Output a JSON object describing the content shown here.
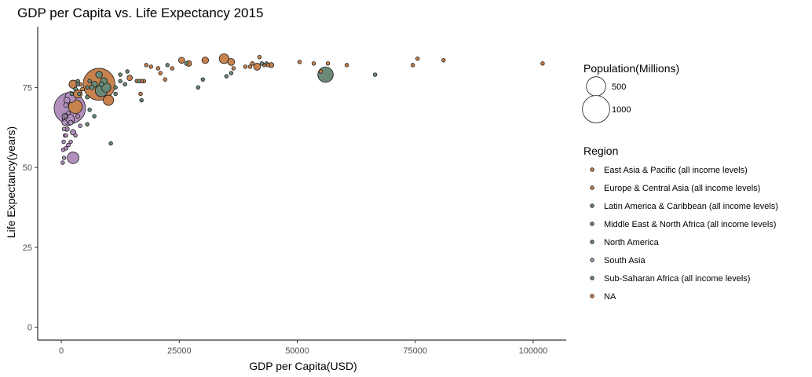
{
  "chart_data": {
    "type": "scatter",
    "title": "GDP per Capita vs. Life Expectancy 2015",
    "xlabel": "GDP per Capita(USD)",
    "ylabel": "Life Expectancy(years)",
    "xlim": [
      -5000,
      107000
    ],
    "ylim": [
      -4,
      94
    ],
    "x_ticks": [
      0,
      25000,
      50000,
      75000,
      100000
    ],
    "y_ticks": [
      0,
      25,
      50,
      75
    ],
    "grid": false,
    "legend_position": "right",
    "size_legend": {
      "title": "Population(Millions)",
      "entries": [
        {
          "label": "500",
          "value": 500
        },
        {
          "label": "1000",
          "value": 1000
        }
      ]
    },
    "color_legend": {
      "title": "Region",
      "entries": [
        {
          "label": "East Asia & Pacific (all income levels)",
          "color": "#c8824e"
        },
        {
          "label": "Europe & Central Asia (all income levels)",
          "color": "#c8824e"
        },
        {
          "label": "Latin America & Caribbean (all income levels)",
          "color": "#6a8a76"
        },
        {
          "label": "Middle East & North Africa (all income levels)",
          "color": "#6a8a76"
        },
        {
          "label": "North America",
          "color": "#6a8a76"
        },
        {
          "label": "South Asia",
          "color": "#b290bd"
        },
        {
          "label": "Sub-Saharan Africa (all income levels)",
          "color": "#6a8a76"
        },
        {
          "label": "NA",
          "color": "#c8824e"
        }
      ]
    },
    "points": [
      {
        "x": 102000,
        "y": 82.5,
        "pop": 1,
        "region": "Europe & Central Asia (all income levels)"
      },
      {
        "x": 81000,
        "y": 83.5,
        "pop": 8,
        "region": "Europe & Central Asia (all income levels)"
      },
      {
        "x": 75500,
        "y": 84,
        "pop": 1,
        "region": "Europe & Central Asia (all income levels)"
      },
      {
        "x": 74500,
        "y": 82,
        "pop": 5,
        "region": "Europe & Central Asia (all income levels)"
      },
      {
        "x": 66500,
        "y": 79,
        "pop": 5,
        "region": "Middle East & North Africa (all income levels)"
      },
      {
        "x": 60500,
        "y": 82,
        "pop": 5,
        "region": "Europe & Central Asia (all income levels)"
      },
      {
        "x": 56500,
        "y": 82.5,
        "pop": 10,
        "region": "East Asia & Pacific (all income levels)"
      },
      {
        "x": 56000,
        "y": 79,
        "pop": 320,
        "region": "North America"
      },
      {
        "x": 55000,
        "y": 80,
        "pop": 3,
        "region": "Europe & Central Asia (all income levels)"
      },
      {
        "x": 53500,
        "y": 82.5,
        "pop": 5,
        "region": "Europe & Central Asia (all income levels)"
      },
      {
        "x": 50500,
        "y": 83,
        "pop": 5,
        "region": "Europe & Central Asia (all income levels)"
      },
      {
        "x": 44500,
        "y": 82,
        "pop": 35,
        "region": "Europe & Central Asia (all income levels)"
      },
      {
        "x": 43800,
        "y": 82,
        "pop": 5,
        "region": "Europe & Central Asia (all income levels)"
      },
      {
        "x": 43500,
        "y": 82.5,
        "pop": 8,
        "region": "Middle East & North Africa (all income levels)"
      },
      {
        "x": 43000,
        "y": 82,
        "pop": 10,
        "region": "Europe & Central Asia (all income levels)"
      },
      {
        "x": 42500,
        "y": 82.5,
        "pop": 5,
        "region": "Middle East & North Africa (all income levels)"
      },
      {
        "x": 42000,
        "y": 84.5,
        "pop": 5,
        "region": "East Asia & Pacific (all income levels)"
      },
      {
        "x": 41500,
        "y": 81.5,
        "pop": 65,
        "region": "Europe & Central Asia (all income levels)"
      },
      {
        "x": 40500,
        "y": 82.5,
        "pop": 20,
        "region": "East Asia & Pacific (all income levels)"
      },
      {
        "x": 40000,
        "y": 81.5,
        "pop": 5,
        "region": "Europe & Central Asia (all income levels)"
      },
      {
        "x": 39000,
        "y": 81.5,
        "pop": 10,
        "region": "Europe & Central Asia (all income levels)"
      },
      {
        "x": 36500,
        "y": 81,
        "pop": 5,
        "region": "Europe & Central Asia (all income levels)"
      },
      {
        "x": 36000,
        "y": 83,
        "pop": 65,
        "region": "Europe & Central Asia (all income levels)"
      },
      {
        "x": 34500,
        "y": 84,
        "pop": 127,
        "region": "East Asia & Pacific (all income levels)"
      },
      {
        "x": 36000,
        "y": 79.5,
        "pop": 3,
        "region": "Middle East & North Africa (all income levels)"
      },
      {
        "x": 35000,
        "y": 78.5,
        "pop": 1,
        "region": "Middle East & North Africa (all income levels)"
      },
      {
        "x": 30500,
        "y": 83.5,
        "pop": 60,
        "region": "Europe & Central Asia (all income levels)"
      },
      {
        "x": 30000,
        "y": 77.5,
        "pop": 1,
        "region": "Middle East & North Africa (all income levels)"
      },
      {
        "x": 29000,
        "y": 75,
        "pop": 3,
        "region": "Middle East & North Africa (all income levels)"
      },
      {
        "x": 27000,
        "y": 82.5,
        "pop": 45,
        "region": "Europe & Central Asia (all income levels)"
      },
      {
        "x": 26500,
        "y": 82.5,
        "pop": 5,
        "region": "Middle East & North Africa (all income levels)"
      },
      {
        "x": 25500,
        "y": 83.5,
        "pop": 50,
        "region": "East Asia & Pacific (all income levels)"
      },
      {
        "x": 23500,
        "y": 81,
        "pop": 10,
        "region": "Europe & Central Asia (all income levels)"
      },
      {
        "x": 22500,
        "y": 82,
        "pop": 2,
        "region": "Middle East & North Africa (all income levels)"
      },
      {
        "x": 22000,
        "y": 77.5,
        "pop": 5,
        "region": "Europe & Central Asia (all income levels)"
      },
      {
        "x": 21000,
        "y": 79.5,
        "pop": 5,
        "region": "Europe & Central Asia (all income levels)"
      },
      {
        "x": 20500,
        "y": 81,
        "pop": 10,
        "region": "Europe & Central Asia (all income levels)"
      },
      {
        "x": 19000,
        "y": 81.5,
        "pop": 2,
        "region": "Europe & Central Asia (all income levels)"
      },
      {
        "x": 18000,
        "y": 82,
        "pop": 10,
        "region": "Europe & Central Asia (all income levels)"
      },
      {
        "x": 17500,
        "y": 77,
        "pop": 20,
        "region": "Europe & Central Asia (all income levels)"
      },
      {
        "x": 17000,
        "y": 77,
        "pop": 5,
        "region": "Europe & Central Asia (all income levels)"
      },
      {
        "x": 16500,
        "y": 77,
        "pop": 5,
        "region": "Latin America & Caribbean (all income levels)"
      },
      {
        "x": 16000,
        "y": 77,
        "pop": 10,
        "region": "Europe & Central Asia (all income levels)"
      },
      {
        "x": 16800,
        "y": 73,
        "pop": 5,
        "region": "Europe & Central Asia (all income levels)"
      },
      {
        "x": 17000,
        "y": 71,
        "pop": 5,
        "region": "Latin America & Caribbean (all income levels)"
      },
      {
        "x": 14500,
        "y": 78,
        "pop": 40,
        "region": "Europe & Central Asia (all income levels)"
      },
      {
        "x": 13500,
        "y": 76,
        "pop": 5,
        "region": "Latin America & Caribbean (all income levels)"
      },
      {
        "x": 12500,
        "y": 77,
        "pop": 10,
        "region": "Latin America & Caribbean (all income levels)"
      },
      {
        "x": 12500,
        "y": 79,
        "pop": 15,
        "region": "Latin America & Caribbean (all income levels)"
      },
      {
        "x": 14000,
        "y": 80,
        "pop": 5,
        "region": "Latin America & Caribbean (all income levels)"
      },
      {
        "x": 11500,
        "y": 75,
        "pop": 5,
        "region": "Latin America & Caribbean (all income levels)"
      },
      {
        "x": 10500,
        "y": 57.5,
        "pop": 5,
        "region": "Sub-Saharan Africa (all income levels)"
      },
      {
        "x": 10000,
        "y": 71,
        "pop": 144,
        "region": "Europe & Central Asia (all income levels)"
      },
      {
        "x": 9500,
        "y": 75,
        "pop": 120,
        "region": "Latin America & Caribbean (all income levels)"
      },
      {
        "x": 9000,
        "y": 77,
        "pop": 60,
        "region": "Middle East & North Africa (all income levels)"
      },
      {
        "x": 8500,
        "y": 76,
        "pop": 30,
        "region": "Middle East & North Africa (all income levels)"
      },
      {
        "x": 8000,
        "y": 76,
        "pop": 1370,
        "region": "East Asia & Pacific (all income levels)"
      },
      {
        "x": 8500,
        "y": 74,
        "pop": 200,
        "region": "Latin America & Caribbean (all income levels)"
      },
      {
        "x": 8000,
        "y": 79,
        "pop": 60,
        "region": "Latin America & Caribbean (all income levels)"
      },
      {
        "x": 7000,
        "y": 76,
        "pop": 50,
        "region": "Latin America & Caribbean (all income levels)"
      },
      {
        "x": 6500,
        "y": 75,
        "pop": 30,
        "region": "Latin America & Caribbean (all income levels)"
      },
      {
        "x": 6000,
        "y": 77,
        "pop": 10,
        "region": "Latin America & Caribbean (all income levels)"
      },
      {
        "x": 5500,
        "y": 75,
        "pop": 10,
        "region": "Middle East & North Africa (all income levels)"
      },
      {
        "x": 5500,
        "y": 72,
        "pop": 20,
        "region": "Latin America & Caribbean (all income levels)"
      },
      {
        "x": 6000,
        "y": 68,
        "pop": 10,
        "region": "Sub-Saharan Africa (all income levels)"
      },
      {
        "x": 5500,
        "y": 63.5,
        "pop": 5,
        "region": "Sub-Saharan Africa (all income levels)"
      },
      {
        "x": 7000,
        "y": 66,
        "pop": 10,
        "region": "Sub-Saharan Africa (all income levels)"
      },
      {
        "x": 4500,
        "y": 74.5,
        "pop": 20,
        "region": "Europe & Central Asia (all income levels)"
      },
      {
        "x": 4000,
        "y": 76,
        "pop": 10,
        "region": "Europe & Central Asia (all income levels)"
      },
      {
        "x": 3800,
        "y": 73,
        "pop": 5,
        "region": "Middle East & North Africa (all income levels)"
      },
      {
        "x": 3500,
        "y": 76,
        "pop": 10,
        "region": "Latin America & Caribbean (all income levels)"
      },
      {
        "x": 3500,
        "y": 73,
        "pop": 100,
        "region": "East Asia & Pacific (all income levels)"
      },
      {
        "x": 3000,
        "y": 74.5,
        "pop": 20,
        "region": "Middle East & North Africa (all income levels)"
      },
      {
        "x": 3000,
        "y": 69,
        "pop": 255,
        "region": "East Asia & Pacific (all income levels)"
      },
      {
        "x": 2500,
        "y": 76,
        "pop": 90,
        "region": "East Asia & Pacific (all income levels)"
      },
      {
        "x": 2200,
        "y": 73,
        "pop": 10,
        "region": "Latin America & Caribbean (all income levels)"
      },
      {
        "x": 2000,
        "y": 72,
        "pop": 160,
        "region": "South Asia"
      },
      {
        "x": 1800,
        "y": 68.5,
        "pop": 1310,
        "region": "South Asia"
      },
      {
        "x": 1500,
        "y": 65,
        "pop": 190,
        "region": "South Asia"
      },
      {
        "x": 1200,
        "y": 71,
        "pop": 50,
        "region": "South Asia"
      },
      {
        "x": 1000,
        "y": 69.5,
        "pop": 30,
        "region": "South Asia"
      },
      {
        "x": 900,
        "y": 66,
        "pop": 10,
        "region": "South Asia"
      },
      {
        "x": 700,
        "y": 64,
        "pop": 40,
        "region": "South Asia"
      },
      {
        "x": 600,
        "y": 62,
        "pop": 20,
        "region": "South Asia"
      },
      {
        "x": 800,
        "y": 60,
        "pop": 15,
        "region": "South Asia"
      },
      {
        "x": 500,
        "y": 58,
        "pop": 10,
        "region": "South Asia"
      },
      {
        "x": 400,
        "y": 55.5,
        "pop": 5,
        "region": "South Asia"
      },
      {
        "x": 600,
        "y": 53,
        "pop": 5,
        "region": "South Asia"
      },
      {
        "x": 300,
        "y": 51.5,
        "pop": 5,
        "region": "South Asia"
      },
      {
        "x": 1500,
        "y": 57,
        "pop": 20,
        "region": "South Asia"
      },
      {
        "x": 2500,
        "y": 53,
        "pop": 180,
        "region": "South Asia"
      },
      {
        "x": 1200,
        "y": 62,
        "pop": 30,
        "region": "South Asia"
      },
      {
        "x": 800,
        "y": 66,
        "pop": 50,
        "region": "South Asia"
      },
      {
        "x": 2000,
        "y": 64,
        "pop": 30,
        "region": "South Asia"
      },
      {
        "x": 1000,
        "y": 56,
        "pop": 20,
        "region": "South Asia"
      },
      {
        "x": 2500,
        "y": 61,
        "pop": 40,
        "region": "South Asia"
      },
      {
        "x": 3000,
        "y": 60,
        "pop": 10,
        "region": "South Asia"
      },
      {
        "x": 1500,
        "y": 67,
        "pop": 10,
        "region": "South Asia"
      },
      {
        "x": 3500,
        "y": 66,
        "pop": 20,
        "region": "South Asia"
      },
      {
        "x": 4000,
        "y": 63,
        "pop": 10,
        "region": "South Asia"
      },
      {
        "x": 1000,
        "y": 60,
        "pop": 5,
        "region": "South Asia"
      },
      {
        "x": 2000,
        "y": 58,
        "pop": 5,
        "region": "South Asia"
      },
      {
        "x": 3500,
        "y": 77,
        "pop": 10,
        "region": "Sub-Saharan Africa (all income levels)"
      },
      {
        "x": 11500,
        "y": 73,
        "pop": 10,
        "region": "Latin America & Caribbean (all income levels)"
      }
    ]
  }
}
